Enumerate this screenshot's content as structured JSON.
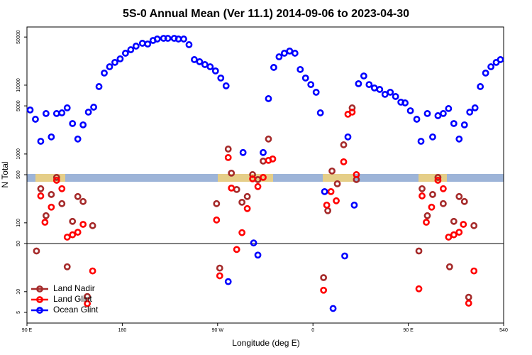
{
  "chart_data": {
    "type": "scatter",
    "title": "5S-0 Annual Mean (Ver 11.1)   2014-09-06 to 2023-04-30",
    "x_label": "Longitude (deg E)",
    "y_label": "N Total",
    "log_y": true,
    "legend": "lower left",
    "reference_line": 50,
    "xlim": [
      90,
      540
    ],
    "ylim": [
      3.5,
      70000
    ],
    "xticks": [
      {
        "value": 90,
        "label": "90 E"
      },
      180,
      {
        "value": 270,
        "label": "90 W"
      },
      {
        "value": 360,
        "label": "0"
      },
      {
        "value": 450,
        "label": "90 E"
      },
      540
    ],
    "yticks": [
      5,
      10,
      50,
      100,
      500,
      1000,
      5000,
      10000,
      50000
    ],
    "series": [
      {
        "name": "Land Nadir",
        "color": "#a52a2a",
        "x": [
          99,
          103,
          108,
          113,
          118,
          123,
          128,
          133,
          138,
          143,
          147,
          152,
          269,
          272,
          280,
          283,
          288,
          293,
          298,
          303,
          308,
          313,
          318,
          370,
          374,
          378,
          383,
          389,
          397,
          401,
          460,
          463,
          468,
          473,
          478,
          483,
          489,
          493,
          498,
          503,
          507,
          512
        ],
        "values": [
          39,
          313,
          127,
          258,
          457,
          190,
          23,
          105,
          241,
          204,
          8.5,
          91,
          190,
          22,
          1180,
          527,
          305,
          199,
          241,
          502,
          425,
          789,
          1650,
          16,
          150,
          566,
          369,
          1360,
          4680,
          425,
          39,
          313,
          127,
          258,
          457,
          190,
          23,
          105,
          241,
          204,
          8.3,
          91
        ]
      },
      {
        "name": "Land Glint",
        "color": "#ff0000",
        "x": [
          103,
          107,
          113,
          118,
          123,
          128,
          133,
          138,
          143,
          147,
          152,
          269,
          272,
          280,
          283,
          288,
          293,
          298,
          303,
          308,
          313,
          318,
          322,
          370,
          373,
          377,
          382,
          389,
          393,
          397,
          401,
          460,
          463,
          467,
          472,
          478,
          483,
          488,
          493,
          498,
          502,
          507,
          512
        ],
        "values": [
          246,
          102,
          169,
          415,
          313,
          62,
          67,
          73,
          95,
          6.7,
          20,
          110,
          17,
          888,
          320,
          41,
          72,
          161,
          436,
          336,
          457,
          808,
          847,
          10.5,
          181,
          284,
          209,
          770,
          3780,
          4060,
          502,
          11,
          246,
          102,
          169,
          415,
          313,
          62,
          67,
          73,
          95,
          6.8,
          20
        ]
      },
      {
        "name": "Ocean Glint",
        "color": "#0000ff",
        "x": [
          93,
          98,
          103,
          108,
          113,
          118,
          123,
          128,
          133,
          138,
          143,
          148,
          153,
          158,
          163,
          168,
          173,
          178,
          183,
          188,
          193,
          199,
          204,
          209,
          213,
          219,
          223,
          229,
          233,
          238,
          243,
          248,
          253,
          258,
          263,
          268,
          273,
          278,
          280,
          294,
          304,
          308,
          313,
          318,
          323,
          328,
          333,
          338,
          343,
          348,
          353,
          358,
          363,
          367,
          371,
          379,
          390,
          393,
          399,
          403,
          408,
          413,
          418,
          423,
          428,
          433,
          438,
          443,
          447,
          452,
          458,
          462,
          468,
          473,
          478,
          483,
          488,
          493,
          498,
          503,
          508,
          513,
          518,
          523,
          528,
          533,
          537
        ],
        "values": [
          4360,
          3200,
          1530,
          3870,
          1770,
          3870,
          3960,
          4680,
          2770,
          1650,
          2650,
          4060,
          4790,
          9530,
          15000,
          18500,
          21400,
          24100,
          29100,
          32700,
          36900,
          40600,
          39600,
          44600,
          46800,
          47900,
          47900,
          47900,
          46800,
          46800,
          38700,
          23500,
          21900,
          19900,
          18500,
          16100,
          12700,
          9770,
          14,
          1050,
          51,
          34,
          1050,
          6370,
          18100,
          25800,
          29100,
          31300,
          29100,
          16900,
          12700,
          10200,
          7890,
          3960,
          284,
          5.7,
          33,
          1770,
          181,
          10500,
          13600,
          10200,
          9100,
          8670,
          7350,
          7890,
          6840,
          5660,
          5520,
          4250,
          3200,
          1530,
          3870,
          1770,
          3600,
          3870,
          4570,
          2770,
          1650,
          2650,
          4060,
          4680,
          9530,
          15000,
          18500,
          21400,
          23500
        ]
      }
    ]
  }
}
